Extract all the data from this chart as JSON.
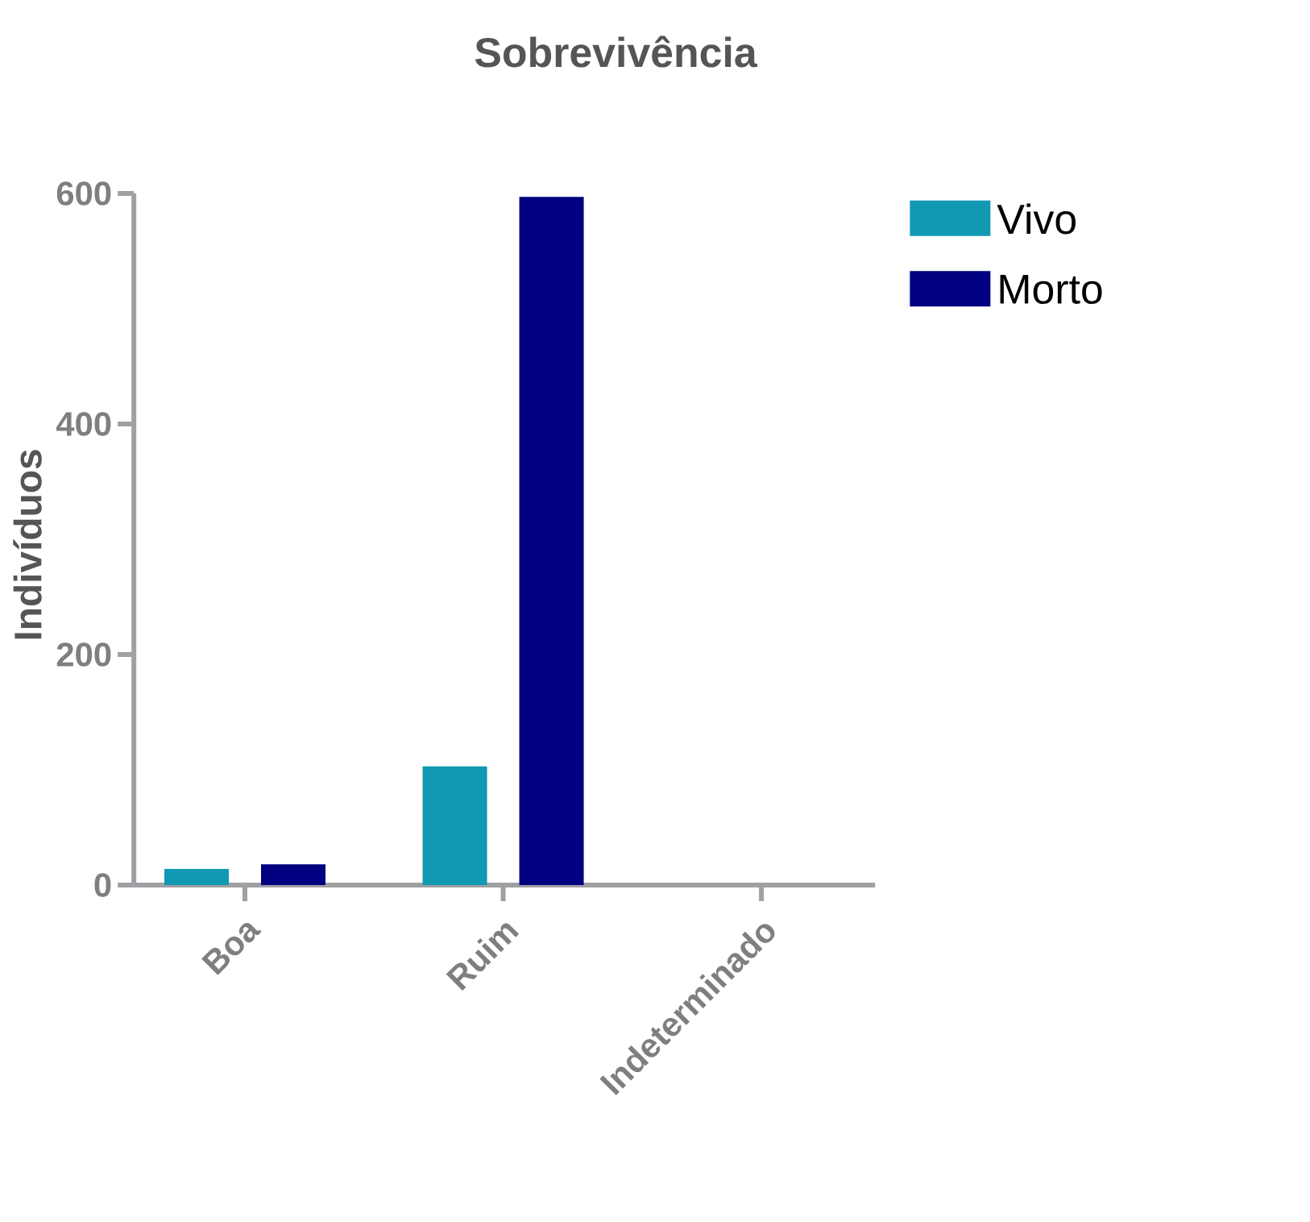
{
  "chart_data": {
    "type": "bar",
    "title": "Sobrevivência",
    "ylabel": "Indivíduos",
    "categories": [
      "Boa",
      "Ruim",
      "Indeterminado"
    ],
    "series": [
      {
        "name": "Vivo",
        "color": "#1199b4",
        "values": [
          14,
          103,
          0
        ]
      },
      {
        "name": "Morto",
        "color": "#000080",
        "values": [
          18,
          597,
          0
        ]
      }
    ],
    "ylim": [
      0,
      600
    ],
    "yticks": [
      0,
      200,
      400,
      600
    ],
    "grid": false,
    "legend": "top right"
  }
}
